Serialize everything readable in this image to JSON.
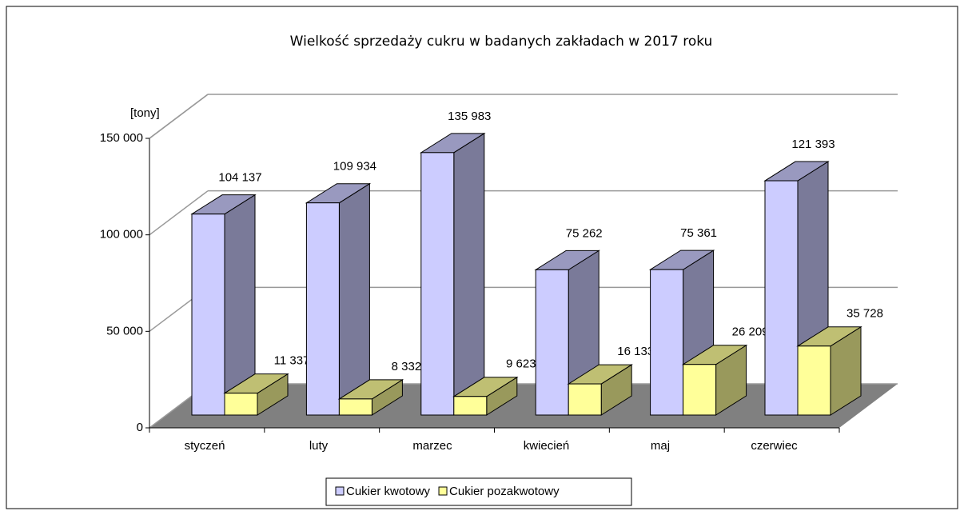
{
  "chart_data": {
    "type": "bar3d",
    "title": "Wielkość sprzedaży cukru w badanych zakładach w 2017 roku",
    "y_label": "[tony]",
    "categories": [
      "styczeń",
      "luty",
      "marzec",
      "kwiecień",
      "maj",
      "czerwiec"
    ],
    "series": [
      {
        "name": "Cukier kwotowy",
        "color": "#ccccff",
        "values": [
          104137,
          109934,
          135983,
          75262,
          75361,
          121393
        ],
        "value_labels": [
          "104 137",
          "109 934",
          "135 983",
          "75 262",
          "75 361",
          "121 393"
        ]
      },
      {
        "name": "Cukier pozakwotowy",
        "color": "#ffff99",
        "values": [
          11337,
          8332,
          9623,
          16133,
          26209,
          35728
        ],
        "value_labels": [
          "11 337",
          "8 332",
          "9 623",
          "16 133",
          "26 209",
          "35 728"
        ]
      }
    ],
    "ylim": [
      0,
      150000
    ],
    "yticks": [
      0,
      {
        "value": 50000,
        "label": "50 000"
      },
      {
        "value": 100000,
        "label": "100 000"
      },
      {
        "value": 150000,
        "label": "150 000"
      }
    ],
    "grid": true
  }
}
